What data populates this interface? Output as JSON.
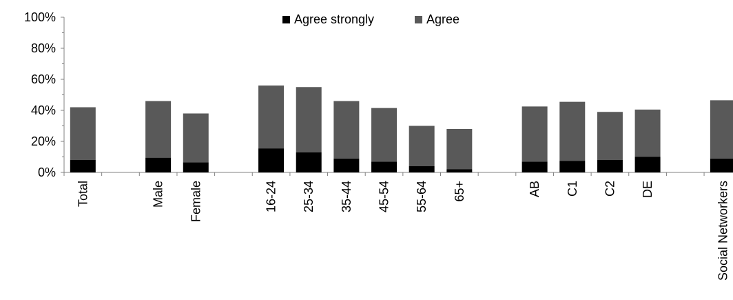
{
  "chart_data": {
    "type": "bar",
    "stacked": true,
    "categories": [
      "Total",
      "",
      "Male",
      "Female",
      "",
      "16-24",
      "25-34",
      "35-44",
      "45-54",
      "55-64",
      "65+",
      "",
      "AB",
      "C1",
      "C2",
      "DE",
      "",
      "Social Networkers"
    ],
    "series": [
      {
        "name": "Agree strongly",
        "color": "#000000",
        "values": [
          8,
          null,
          9.5,
          6.5,
          null,
          15.5,
          13,
          9,
          7,
          4,
          2,
          null,
          7,
          7.5,
          8,
          10,
          null,
          9
        ]
      },
      {
        "name": "Agree",
        "color": "#595959",
        "values": [
          34,
          null,
          36.5,
          31.5,
          null,
          40.5,
          42,
          37,
          34.5,
          26,
          26,
          null,
          35.5,
          38,
          31,
          30.5,
          null,
          37.5
        ]
      }
    ],
    "y_ticks": [
      "0%",
      "20%",
      "40%",
      "60%",
      "80%",
      "100%"
    ],
    "ylim": [
      0,
      100
    ],
    "grid": false,
    "legend_position": "top-center",
    "title": "",
    "xlabel": "",
    "ylabel": ""
  }
}
